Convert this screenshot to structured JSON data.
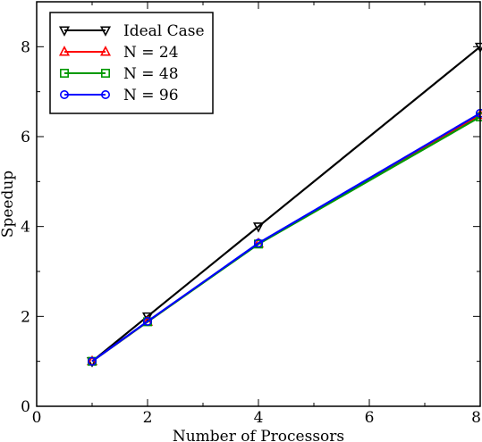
{
  "chart_data": {
    "type": "line",
    "xlabel": "Number of Processors",
    "ylabel": "Speedup",
    "xlim": [
      0,
      8
    ],
    "ylim": [
      0,
      9
    ],
    "x_ticks": [
      "0",
      "2",
      "4",
      "6",
      "8"
    ],
    "y_ticks": [
      "0",
      "2",
      "4",
      "6",
      "8"
    ],
    "legend_position": "top-left",
    "grid": false,
    "series": [
      {
        "name": "Ideal Case",
        "color": "#000000",
        "marker": "triangle-down",
        "x": [
          1,
          2,
          4,
          8
        ],
        "y": [
          1,
          2,
          4,
          8
        ]
      },
      {
        "name": "N = 24",
        "color": "#ff0000",
        "marker": "triangle-up",
        "x": [
          1,
          2,
          4,
          8
        ],
        "y": [
          1,
          1.88,
          3.62,
          6.48
        ]
      },
      {
        "name": "N = 48",
        "color": "#009900",
        "marker": "square",
        "x": [
          1,
          2,
          4,
          8
        ],
        "y": [
          1,
          1.88,
          3.61,
          6.44
        ]
      },
      {
        "name": "N = 96",
        "color": "#0000ff",
        "marker": "circle",
        "x": [
          1,
          2,
          4,
          8
        ],
        "y": [
          1,
          1.89,
          3.63,
          6.52
        ]
      }
    ]
  }
}
